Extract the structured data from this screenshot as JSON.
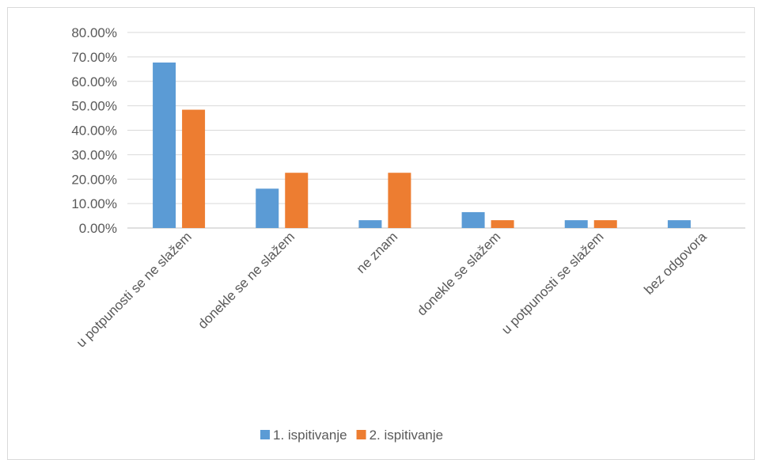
{
  "chart_data": {
    "type": "bar",
    "title": "",
    "xlabel": "",
    "ylabel": "",
    "ylim": [
      0,
      80
    ],
    "yticks": [
      "0.00%",
      "10.00%",
      "20.00%",
      "30.00%",
      "40.00%",
      "50.00%",
      "60.00%",
      "70.00%",
      "80.00%"
    ],
    "categories": [
      "u potpunosti se ne slažem",
      "donekle se ne slažem",
      "ne znam",
      "donekle se slažem",
      "u potpunosti se slažem",
      "bez odgovora"
    ],
    "series": [
      {
        "name": "1. ispitivanje",
        "color": "#5b9bd5",
        "values": [
          67.7,
          16.1,
          3.2,
          6.5,
          3.2,
          3.2
        ]
      },
      {
        "name": "2. ispitivanje",
        "color": "#ed7d31",
        "values": [
          48.4,
          22.6,
          22.6,
          3.2,
          3.2,
          0
        ]
      }
    ],
    "grid": true,
    "legend_position": "bottom"
  }
}
